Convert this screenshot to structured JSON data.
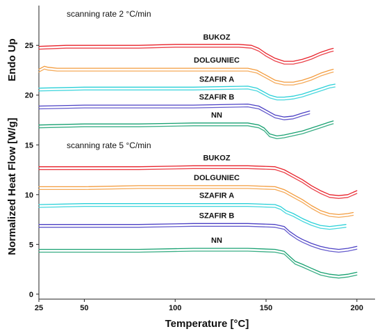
{
  "chart_data": {
    "type": "line",
    "title": "",
    "xlabel": "Temperature [°C]",
    "ylabel": "Normalized Heat Flow [W/g]",
    "ylabel_secondary": "Endo Up",
    "xlim": [
      25,
      210
    ],
    "ylim": [
      -0.5,
      29
    ],
    "x_ticks": [
      25,
      50,
      100,
      150,
      200
    ],
    "y_ticks": [
      0,
      5,
      10,
      15,
      20,
      25
    ],
    "grid": false,
    "legend": "inline labels",
    "annotations": [
      "scanning rate 2 °C/min",
      "scanning rate 5 °C/min"
    ],
    "series": [
      {
        "name": "BUKOZ",
        "group": "scanning rate 2 °C/min",
        "color": "#e8212a",
        "x": [
          25,
          40,
          60,
          80,
          100,
          120,
          135,
          142,
          146,
          150,
          155,
          160,
          165,
          170,
          175,
          180,
          185,
          187
        ],
        "y": [
          24.9,
          25.0,
          25.0,
          25.0,
          25.1,
          25.1,
          25.1,
          25.0,
          24.7,
          24.2,
          23.7,
          23.4,
          23.4,
          23.6,
          23.9,
          24.3,
          24.6,
          24.7
        ]
      },
      {
        "name": "DOLGUNIEC",
        "group": "scanning rate 2 °C/min",
        "color": "#f39b3c",
        "x": [
          25,
          28,
          30,
          35,
          50,
          80,
          110,
          140,
          145,
          150,
          155,
          160,
          165,
          170,
          175,
          180,
          185,
          187
        ],
        "y": [
          22.6,
          22.9,
          22.8,
          22.7,
          22.7,
          22.7,
          22.7,
          22.7,
          22.5,
          22.0,
          21.5,
          21.3,
          21.3,
          21.5,
          21.8,
          22.2,
          22.5,
          22.6
        ]
      },
      {
        "name": "SZAFIR A",
        "group": "scanning rate 2 °C/min",
        "color": "#28d0d8",
        "x": [
          25,
          50,
          80,
          110,
          140,
          145,
          148,
          152,
          156,
          160,
          165,
          170,
          175,
          180,
          185,
          188
        ],
        "y": [
          20.7,
          20.8,
          20.8,
          20.8,
          20.9,
          20.7,
          20.4,
          20.0,
          19.8,
          19.8,
          19.9,
          20.1,
          20.4,
          20.7,
          21.0,
          21.1
        ]
      },
      {
        "name": "SZAFIR B",
        "group": "scanning rate 2 °C/min",
        "color": "#4a3fc4",
        "x": [
          25,
          50,
          80,
          110,
          140,
          146,
          150,
          155,
          160,
          165,
          170,
          174
        ],
        "y": [
          18.9,
          19.0,
          19.0,
          19.0,
          19.1,
          18.9,
          18.5,
          18.0,
          17.8,
          17.9,
          18.2,
          18.4
        ]
      },
      {
        "name": "NN",
        "group": "scanning rate 2 °C/min",
        "color": "#16a070",
        "x": [
          25,
          50,
          80,
          110,
          140,
          146,
          149,
          152,
          156,
          160,
          165,
          170,
          175,
          180,
          185,
          187
        ],
        "y": [
          17.0,
          17.1,
          17.1,
          17.2,
          17.2,
          17.0,
          16.7,
          16.1,
          15.9,
          16.0,
          16.2,
          16.4,
          16.7,
          17.0,
          17.3,
          17.4
        ]
      },
      {
        "name": "BUKOZ",
        "group": "scanning rate 5 °C/min",
        "color": "#e8212a",
        "x": [
          25,
          50,
          80,
          110,
          140,
          155,
          160,
          165,
          170,
          175,
          180,
          185,
          190,
          195,
          200
        ],
        "y": [
          12.8,
          12.8,
          12.8,
          12.9,
          12.9,
          12.8,
          12.5,
          12.0,
          11.5,
          10.9,
          10.4,
          10.0,
          9.9,
          10.0,
          10.4
        ]
      },
      {
        "name": "DOLGUNIEC",
        "group": "scanning rate 5 °C/min",
        "color": "#f39b3c",
        "x": [
          25,
          50,
          80,
          110,
          140,
          155,
          160,
          165,
          170,
          175,
          180,
          185,
          190,
          195,
          198
        ],
        "y": [
          10.8,
          10.8,
          10.9,
          10.9,
          10.9,
          10.8,
          10.5,
          10.0,
          9.5,
          8.9,
          8.4,
          8.1,
          8.0,
          8.1,
          8.2
        ]
      },
      {
        "name": "SZAFIR A",
        "group": "scanning rate 5 °C/min",
        "color": "#28d0d8",
        "x": [
          25,
          50,
          80,
          110,
          140,
          155,
          158,
          161,
          165,
          170,
          175,
          180,
          185,
          190,
          194
        ],
        "y": [
          9.0,
          9.1,
          9.1,
          9.1,
          9.1,
          9.0,
          8.8,
          8.4,
          8.1,
          7.6,
          7.2,
          6.9,
          6.8,
          6.9,
          7.0
        ]
      },
      {
        "name": "SZAFIR B",
        "group": "scanning rate 5 °C/min",
        "color": "#4a3fc4",
        "x": [
          25,
          50,
          80,
          110,
          140,
          155,
          160,
          163,
          167,
          170,
          175,
          180,
          185,
          190,
          195,
          200
        ],
        "y": [
          7.0,
          7.0,
          7.0,
          7.1,
          7.1,
          7.0,
          6.8,
          6.3,
          5.8,
          5.5,
          5.1,
          4.8,
          4.6,
          4.5,
          4.6,
          4.8
        ]
      },
      {
        "name": "NN",
        "group": "scanning rate 5 °C/min",
        "color": "#16a070",
        "x": [
          25,
          50,
          80,
          110,
          140,
          155,
          160,
          163,
          166,
          170,
          175,
          180,
          185,
          190,
          195,
          200
        ],
        "y": [
          4.5,
          4.5,
          4.5,
          4.6,
          4.6,
          4.5,
          4.3,
          3.8,
          3.3,
          3.0,
          2.6,
          2.2,
          2.0,
          1.9,
          2.0,
          2.2
        ]
      }
    ]
  }
}
